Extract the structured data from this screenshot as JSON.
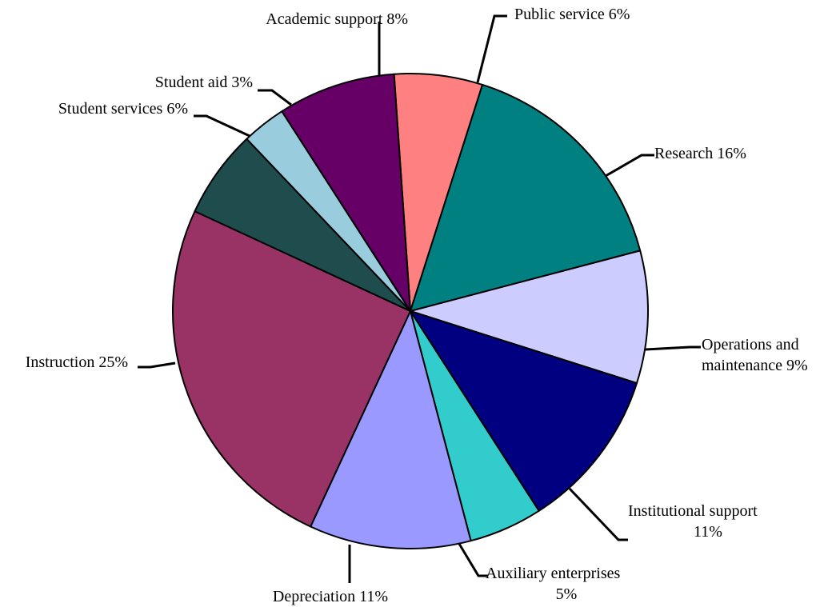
{
  "chart_data": {
    "type": "pie",
    "title": "",
    "start_angle_deg": -3.95,
    "direction": "clockwise",
    "slices": [
      {
        "label": "Public service",
        "value": 6,
        "color": "#ff8080",
        "label_lines": [
          "Public service 6%"
        ]
      },
      {
        "label": "Research",
        "value": 16,
        "color": "#008080",
        "label_lines": [
          "Research 16%"
        ]
      },
      {
        "label": "Operations and maintenance",
        "value": 9,
        "color": "#ccccff",
        "label_lines": [
          "Operations and",
          "maintenance 9%"
        ]
      },
      {
        "label": "Institutional support",
        "value": 11,
        "color": "#000080",
        "label_lines": [
          "Institutional support",
          "11%"
        ]
      },
      {
        "label": "Auxiliary enterprises",
        "value": 5,
        "color": "#33cccc",
        "label_lines": [
          "Auxiliary enterprises",
          "5%"
        ]
      },
      {
        "label": "Depreciation",
        "value": 11,
        "color": "#9999ff",
        "label_lines": [
          "Depreciation 11%"
        ]
      },
      {
        "label": "Instruction",
        "value": 25,
        "color": "#993366",
        "label_lines": [
          "Instruction 25%"
        ]
      },
      {
        "label": "Student services",
        "value": 6,
        "color": "#1f4c4c",
        "label_lines": [
          "Student services 6%"
        ]
      },
      {
        "label": "Student aid",
        "value": 3,
        "color": "#99ccdd",
        "label_lines": [
          "Student aid 3%"
        ]
      },
      {
        "label": "Academic support",
        "value": 8,
        "color": "#660066",
        "label_lines": [
          "Academic support 8%"
        ]
      }
    ]
  }
}
